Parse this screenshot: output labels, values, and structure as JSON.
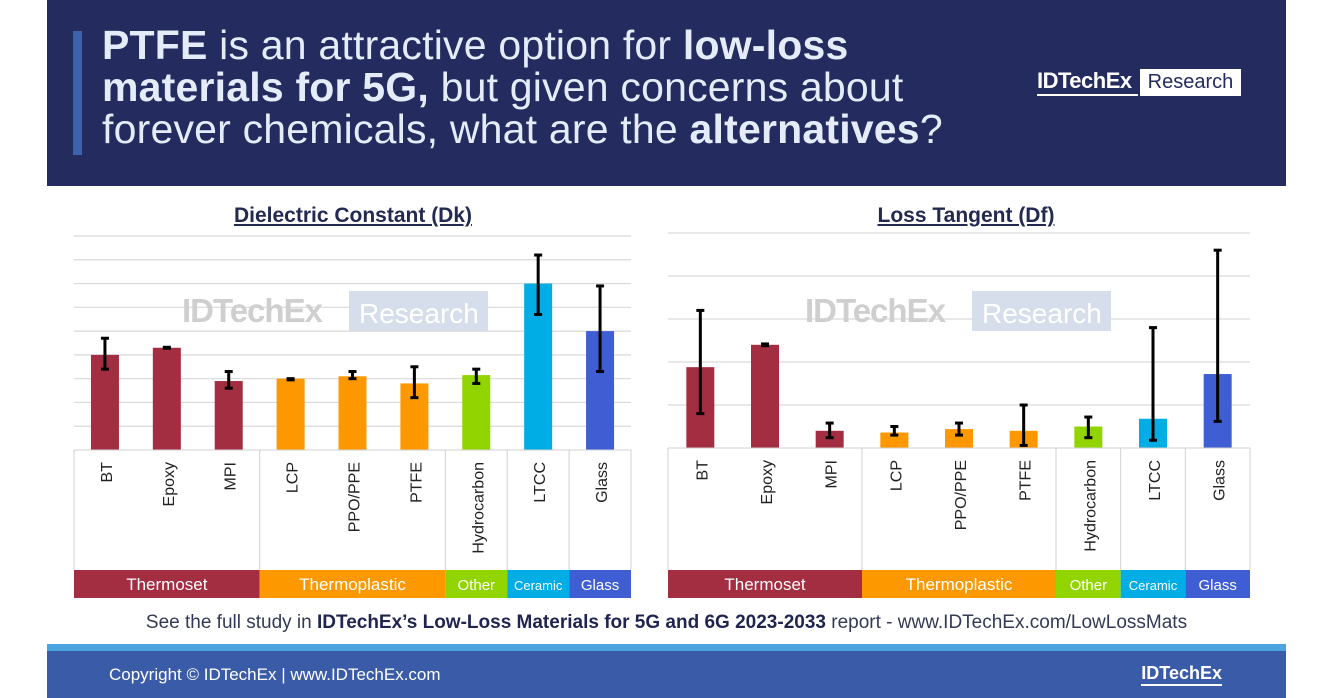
{
  "header": {
    "title_parts": [
      {
        "text": "PTFE",
        "bold": true
      },
      {
        "text": " is an attractive option for ",
        "bold": false
      },
      {
        "text": "low-loss materials for 5G,",
        "bold": true
      },
      {
        "text": " but given concerns about forever chemicals, what are the ",
        "bold": false
      },
      {
        "text": "alternatives",
        "bold": true
      },
      {
        "text": "?",
        "bold": false
      }
    ],
    "logo_name": "IDTechEx",
    "logo_suffix": "Research"
  },
  "watermark": {
    "name": "IDTechEx",
    "suffix": "Research"
  },
  "chart_data": [
    {
      "type": "bar",
      "title": "Dielectric Constant (Dk)",
      "categories": [
        "BT",
        "Epoxy",
        "MPI",
        "LCP",
        "PPO/PPE",
        "PTFE",
        "Hydrocarbon",
        "LTCC",
        "Glass"
      ],
      "groups": [
        "Thermoset",
        "Thermoset",
        "Thermoset",
        "Thermoplastic",
        "Thermoplastic",
        "Thermoplastic",
        "Other",
        "Ceramic",
        "Glass"
      ],
      "values": [
        4.0,
        4.3,
        2.9,
        3.0,
        3.1,
        2.8,
        3.15,
        7.0,
        5.0
      ],
      "error_low": [
        3.4,
        4.28,
        2.6,
        2.95,
        3.0,
        2.2,
        2.8,
        5.7,
        3.3
      ],
      "error_high": [
        4.7,
        4.32,
        3.3,
        3.0,
        3.3,
        3.5,
        3.4,
        8.2,
        6.9
      ],
      "ylim": [
        0,
        9
      ],
      "grid": true
    },
    {
      "type": "bar",
      "title": "Loss Tangent (Df)",
      "categories": [
        "BT",
        "Epoxy",
        "MPI",
        "LCP",
        "PPO/PPE",
        "PTFE",
        "Hydrocarbon",
        "LTCC",
        "Glass"
      ],
      "groups": [
        "Thermoset",
        "Thermoset",
        "Thermoset",
        "Thermoplastic",
        "Thermoplastic",
        "Thermoplastic",
        "Other",
        "Ceramic",
        "Glass"
      ],
      "values": [
        0.0094,
        0.012,
        0.002,
        0.0018,
        0.0022,
        0.002,
        0.0025,
        0.0034,
        0.0086
      ],
      "error_low": [
        0.004,
        0.0119,
        0.0012,
        0.0015,
        0.0015,
        0.0003,
        0.0012,
        0.0009,
        0.0031
      ],
      "error_high": [
        0.016,
        0.0121,
        0.0029,
        0.0025,
        0.0029,
        0.005,
        0.0036,
        0.014,
        0.023
      ],
      "ylim": [
        0,
        0.025
      ],
      "grid": true
    }
  ],
  "group_colors": {
    "Thermoset": "#a32d41",
    "Thermoplastic": "#fd9800",
    "Other": "#92d400",
    "Ceramic": "#00ade5",
    "Glass": "#3f5ed3"
  },
  "note": {
    "pre": "See the full study in ",
    "bold": "IDTechEx’s Low-Loss Materials for 5G and 6G 2023-2033",
    "post": " report - www.IDTechEx.com/LowLossMats"
  },
  "footer": {
    "copyright": "Copyright © IDTechEx |  www.IDTechEx.com",
    "logo": "IDTechEx"
  }
}
